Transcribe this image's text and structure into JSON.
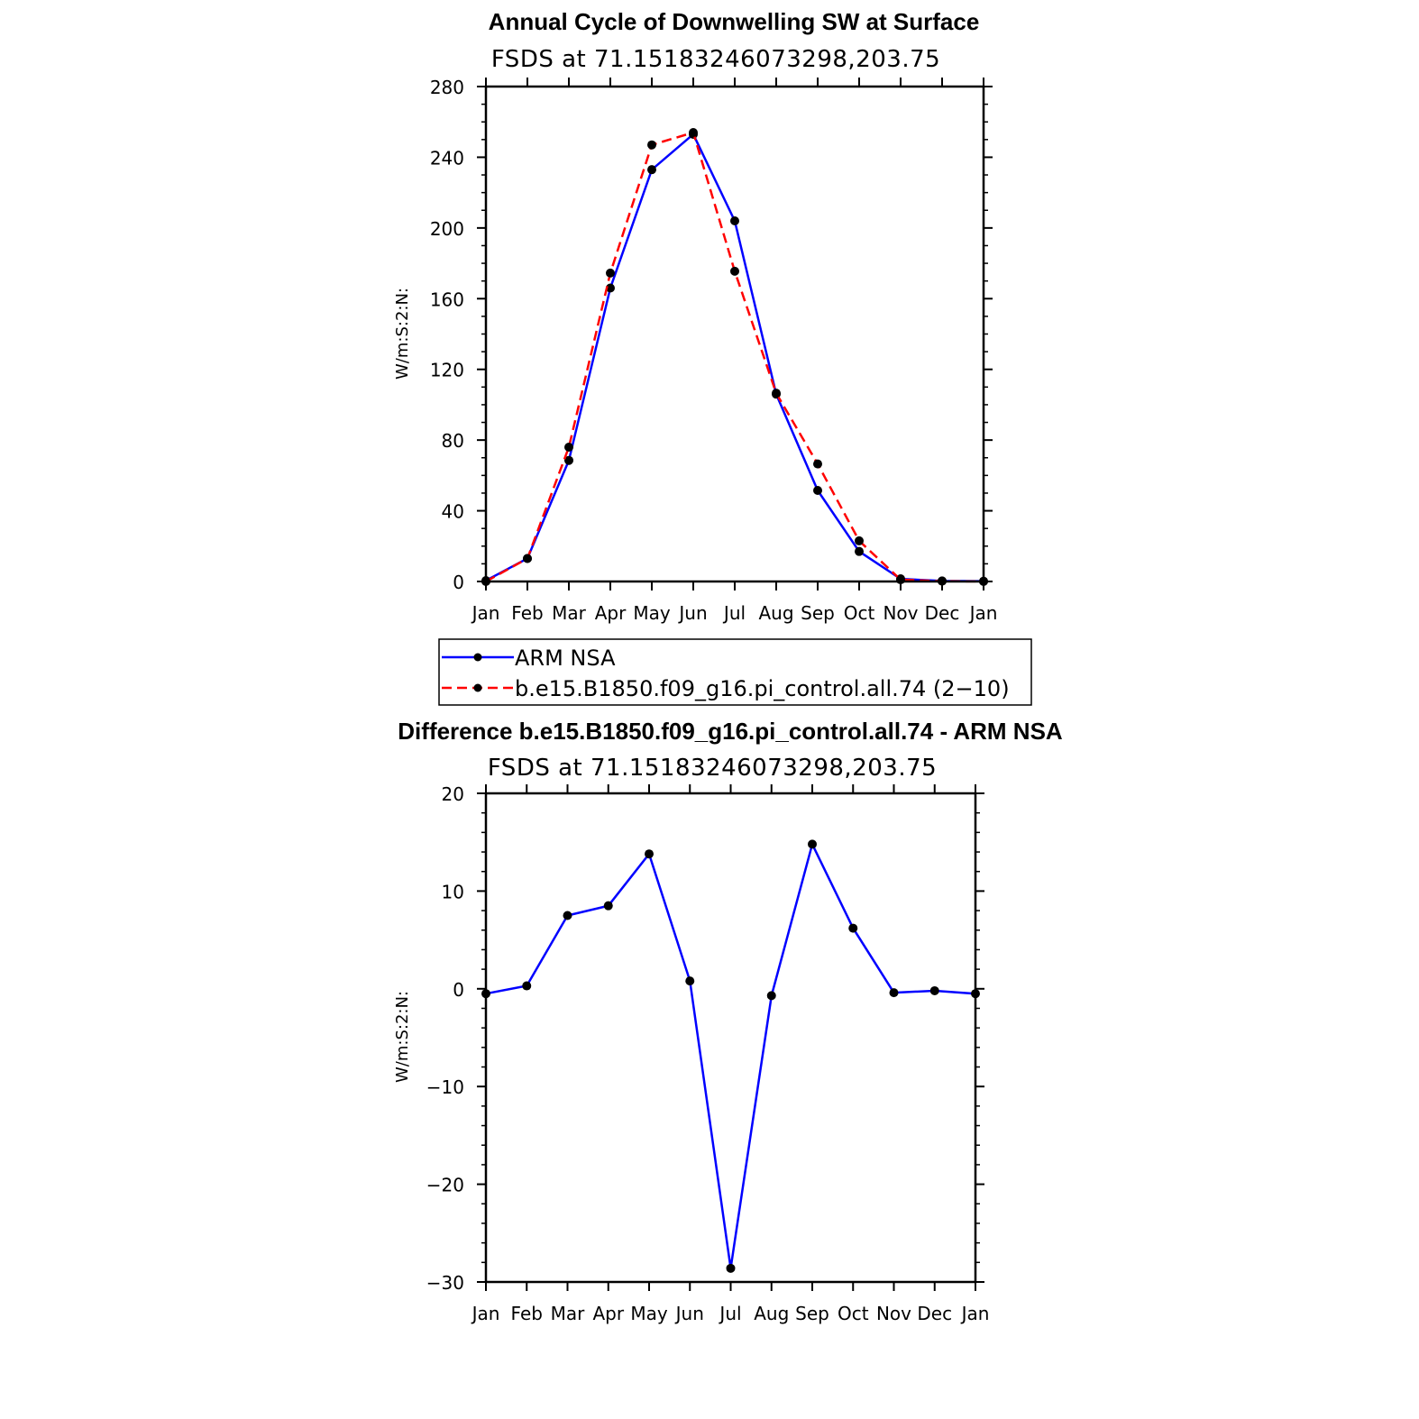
{
  "chart_data": [
    {
      "type": "line",
      "title": "Annual Cycle of Downwelling SW at Surface",
      "subtitle": "FSDS at 71.15183246073298,203.75",
      "xlabel": "",
      "ylabel": "W/m:S:2:N:",
      "categories": [
        "Jan",
        "Feb",
        "Mar",
        "Apr",
        "May",
        "Jun",
        "Jul",
        "Aug",
        "Sep",
        "Oct",
        "Nov",
        "Dec",
        "Jan"
      ],
      "ylim": [
        0,
        280
      ],
      "yticks": [
        "0",
        "40",
        "80",
        "120",
        "160",
        "200",
        "240",
        "280"
      ],
      "series": [
        {
          "name": "ARM NSA",
          "color": "#0000ff",
          "dash": "solid",
          "values": [
            0.5,
            13,
            68.5,
            166,
            233,
            253,
            204,
            106,
            51.5,
            17,
            1.5,
            0.3,
            0.2
          ]
        },
        {
          "name": "b.e15.B1850.f09_g16.pi_control.all.74 (2−10)",
          "color": "#ff0000",
          "dash": "dashed",
          "values": [
            0,
            13,
            76,
            174.5,
            247,
            254,
            175.5,
            106.5,
            66.5,
            23,
            1,
            0.2,
            0
          ]
        }
      ],
      "legend_position": "below"
    },
    {
      "type": "line",
      "title": "Difference b.e15.B1850.f09_g16.pi_control.all.74 - ARM NSA",
      "subtitle": "FSDS at 71.15183246073298,203.75",
      "xlabel": "",
      "ylabel": "W/m:S:2:N:",
      "categories": [
        "Jan",
        "Feb",
        "Mar",
        "Apr",
        "May",
        "Jun",
        "Jul",
        "Aug",
        "Sep",
        "Oct",
        "Nov",
        "Dec",
        "Jan"
      ],
      "ylim": [
        -30,
        20
      ],
      "yticks": [
        "−30",
        "−20",
        "−10",
        "0",
        "10",
        "20"
      ],
      "series": [
        {
          "color": "#0000ff",
          "dash": "solid",
          "values": [
            -0.5,
            0.3,
            7.5,
            8.5,
            13.8,
            0.8,
            -28.6,
            -0.7,
            14.8,
            6.2,
            -0.4,
            -0.2,
            -0.5
          ]
        }
      ]
    }
  ]
}
